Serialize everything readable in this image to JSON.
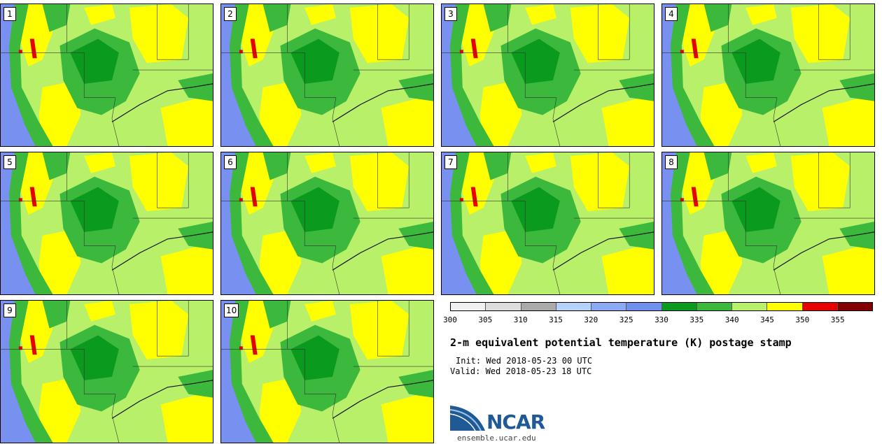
{
  "members": [
    "1",
    "2",
    "3",
    "4",
    "5",
    "6",
    "7",
    "8",
    "9",
    "10"
  ],
  "colorbar": {
    "ticks": [
      "300",
      "305",
      "310",
      "315",
      "320",
      "325",
      "330",
      "335",
      "340",
      "345",
      "350",
      "355"
    ],
    "colors": [
      "#f0f0f0",
      "#dcdcdc",
      "#aaaaaa",
      "#b4d2fa",
      "#8aaaf5",
      "#7090f0",
      "#0a9a1e",
      "#3cb83c",
      "#b8f06a",
      "#ffff00",
      "#e60000",
      "#820000"
    ]
  },
  "map_colors": {
    "ocean": "#7890f0",
    "cool_coast": "#3cb83c",
    "dark_green": "#0a9a1e",
    "land": "#b8f06a",
    "warm": "#ffff00",
    "hot": "#e60000"
  },
  "title": "2-m equivalent potential temperature (K) postage stamp",
  "init": "Init: Wed 2018-05-23 00 UTC",
  "valid": "Valid: Wed 2018-05-23 18 UTC",
  "logo": {
    "text": "NCAR",
    "url": "ensemble.ucar.edu"
  }
}
